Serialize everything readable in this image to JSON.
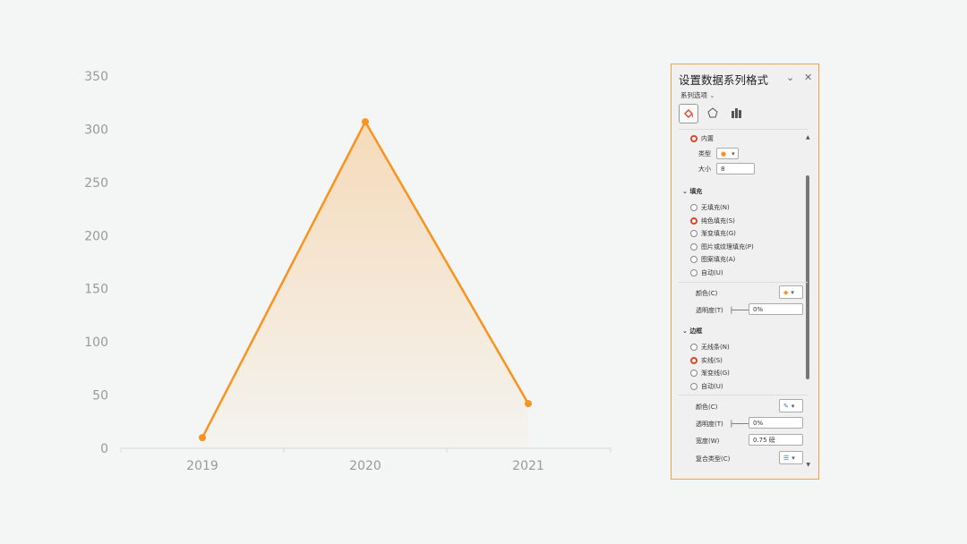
{
  "chart_data": {
    "type": "area",
    "categories": [
      "2019",
      "2020",
      "2021"
    ],
    "values": [
      10,
      307,
      42
    ],
    "ylim": [
      0,
      350
    ],
    "yticks": [
      0,
      50,
      100,
      150,
      200,
      250,
      300,
      350
    ],
    "line_color": "#f7931e",
    "marker": "circle",
    "grid": false
  },
  "panel": {
    "title": "设置数据系列格式",
    "subtitle": "系列选项",
    "tabs": [
      "fill-line",
      "effects",
      "series-options"
    ],
    "marker": {
      "builtin": "内置",
      "type_label": "类型",
      "type_value": "●",
      "size_label": "大小",
      "size_value": "8"
    },
    "fill": {
      "heading": "填充",
      "options": [
        "无填充(N)",
        "纯色填充(S)",
        "渐变填充(G)",
        "图片或纹理填充(P)",
        "图案填充(A)",
        "自动(U)"
      ],
      "selected": 1,
      "color_label": "颜色(C)",
      "transparency_label": "透明度(T)",
      "transparency_value": "0%"
    },
    "border": {
      "heading": "边框",
      "options": [
        "无线条(N)",
        "实线(S)",
        "渐变线(G)",
        "自动(U)"
      ],
      "selected": 1,
      "color_label": "颜色(C)",
      "transparency_label": "透明度(T)",
      "transparency_value": "0%",
      "width_label": "宽度(W)",
      "width_value": "0.75 磅",
      "compound_label": "复合类型(C)"
    }
  },
  "colors": {
    "accent": "#f7931e",
    "panel_border": "#f4a04a",
    "radio_on": "#d9472b"
  }
}
